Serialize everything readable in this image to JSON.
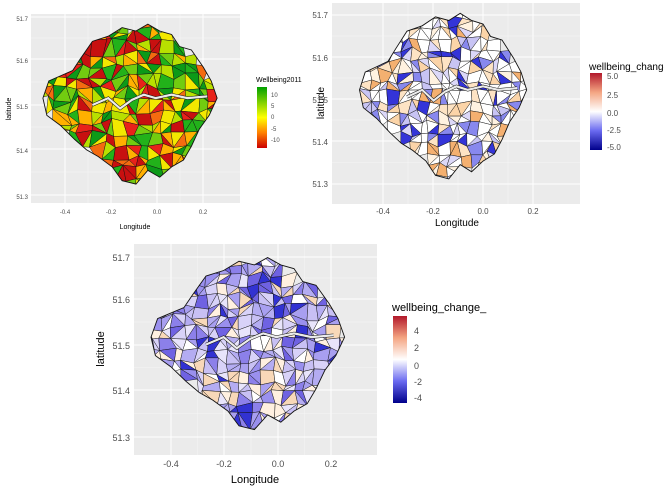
{
  "panels": [
    {
      "id": "p1",
      "xlabel": "Longitude",
      "ylabel": "latitude",
      "x_ticks": [
        "-0.4",
        "-0.2",
        "0.0",
        "0.2"
      ],
      "y_ticks": [
        "51.7",
        "51.6",
        "51.5",
        "51.4",
        "51.3"
      ],
      "legend_title": "Wellbeing2011",
      "legend_ticks": [
        "10",
        "5",
        "0",
        "-5",
        "-10"
      ],
      "legend_colors": [
        "#00a000",
        "#7fd000",
        "#ffff00",
        "#ff8000",
        "#cc0000"
      ],
      "map_colors": [
        "#e8221a",
        "#f46b10",
        "#ffb000",
        "#f3e800",
        "#b8e000",
        "#72cc10",
        "#22b21a",
        "#0c9a18",
        "#c81010"
      ]
    },
    {
      "id": "p2",
      "xlabel": "Longitude",
      "ylabel": "latitude",
      "x_ticks": [
        "-0.4",
        "-0.2",
        "0.0",
        "0.2"
      ],
      "y_ticks": [
        "51.7",
        "51.6",
        "51.5",
        "51.4",
        "51.3"
      ],
      "legend_title": "wellbeing_change",
      "legend_ticks": [
        "5.0",
        "2.5",
        "0.0",
        "-2.5",
        "-5.0"
      ],
      "legend_colors": [
        "#b2182b",
        "#f4a582",
        "#ffffff",
        "#6a6af0",
        "#00008b"
      ],
      "map_colors": [
        "#ffffff",
        "#ffffff",
        "#ffffff",
        "#fde3c4",
        "#fbd4a8",
        "#dcd8f8",
        "#c8c4f4",
        "#f4b070",
        "#8888ee",
        "#3434d8",
        "#ffffff",
        "#fff2e0"
      ]
    },
    {
      "id": "p3",
      "xlabel": "Longitude",
      "ylabel": "latitude",
      "x_ticks": [
        "-0.4",
        "-0.2",
        "0.0",
        "0.2"
      ],
      "y_ticks": [
        "51.7",
        "51.6",
        "51.5",
        "51.4",
        "51.3"
      ],
      "legend_title": "wellbeing_change_",
      "legend_ticks": [
        "4",
        "2",
        "0",
        "-2",
        "-4"
      ],
      "legend_colors": [
        "#b2182b",
        "#f4a582",
        "#ffffff",
        "#6a6af0",
        "#00008b"
      ],
      "map_colors": [
        "#c8c0f4",
        "#a89ff0",
        "#8c80ea",
        "#6f62e2",
        "#e8e4fb",
        "#ffffff",
        "#f8d8b8",
        "#3232d2",
        "#b4acf2",
        "#9a90ee",
        "#d8d2f8",
        "#fff0e0"
      ]
    }
  ]
}
